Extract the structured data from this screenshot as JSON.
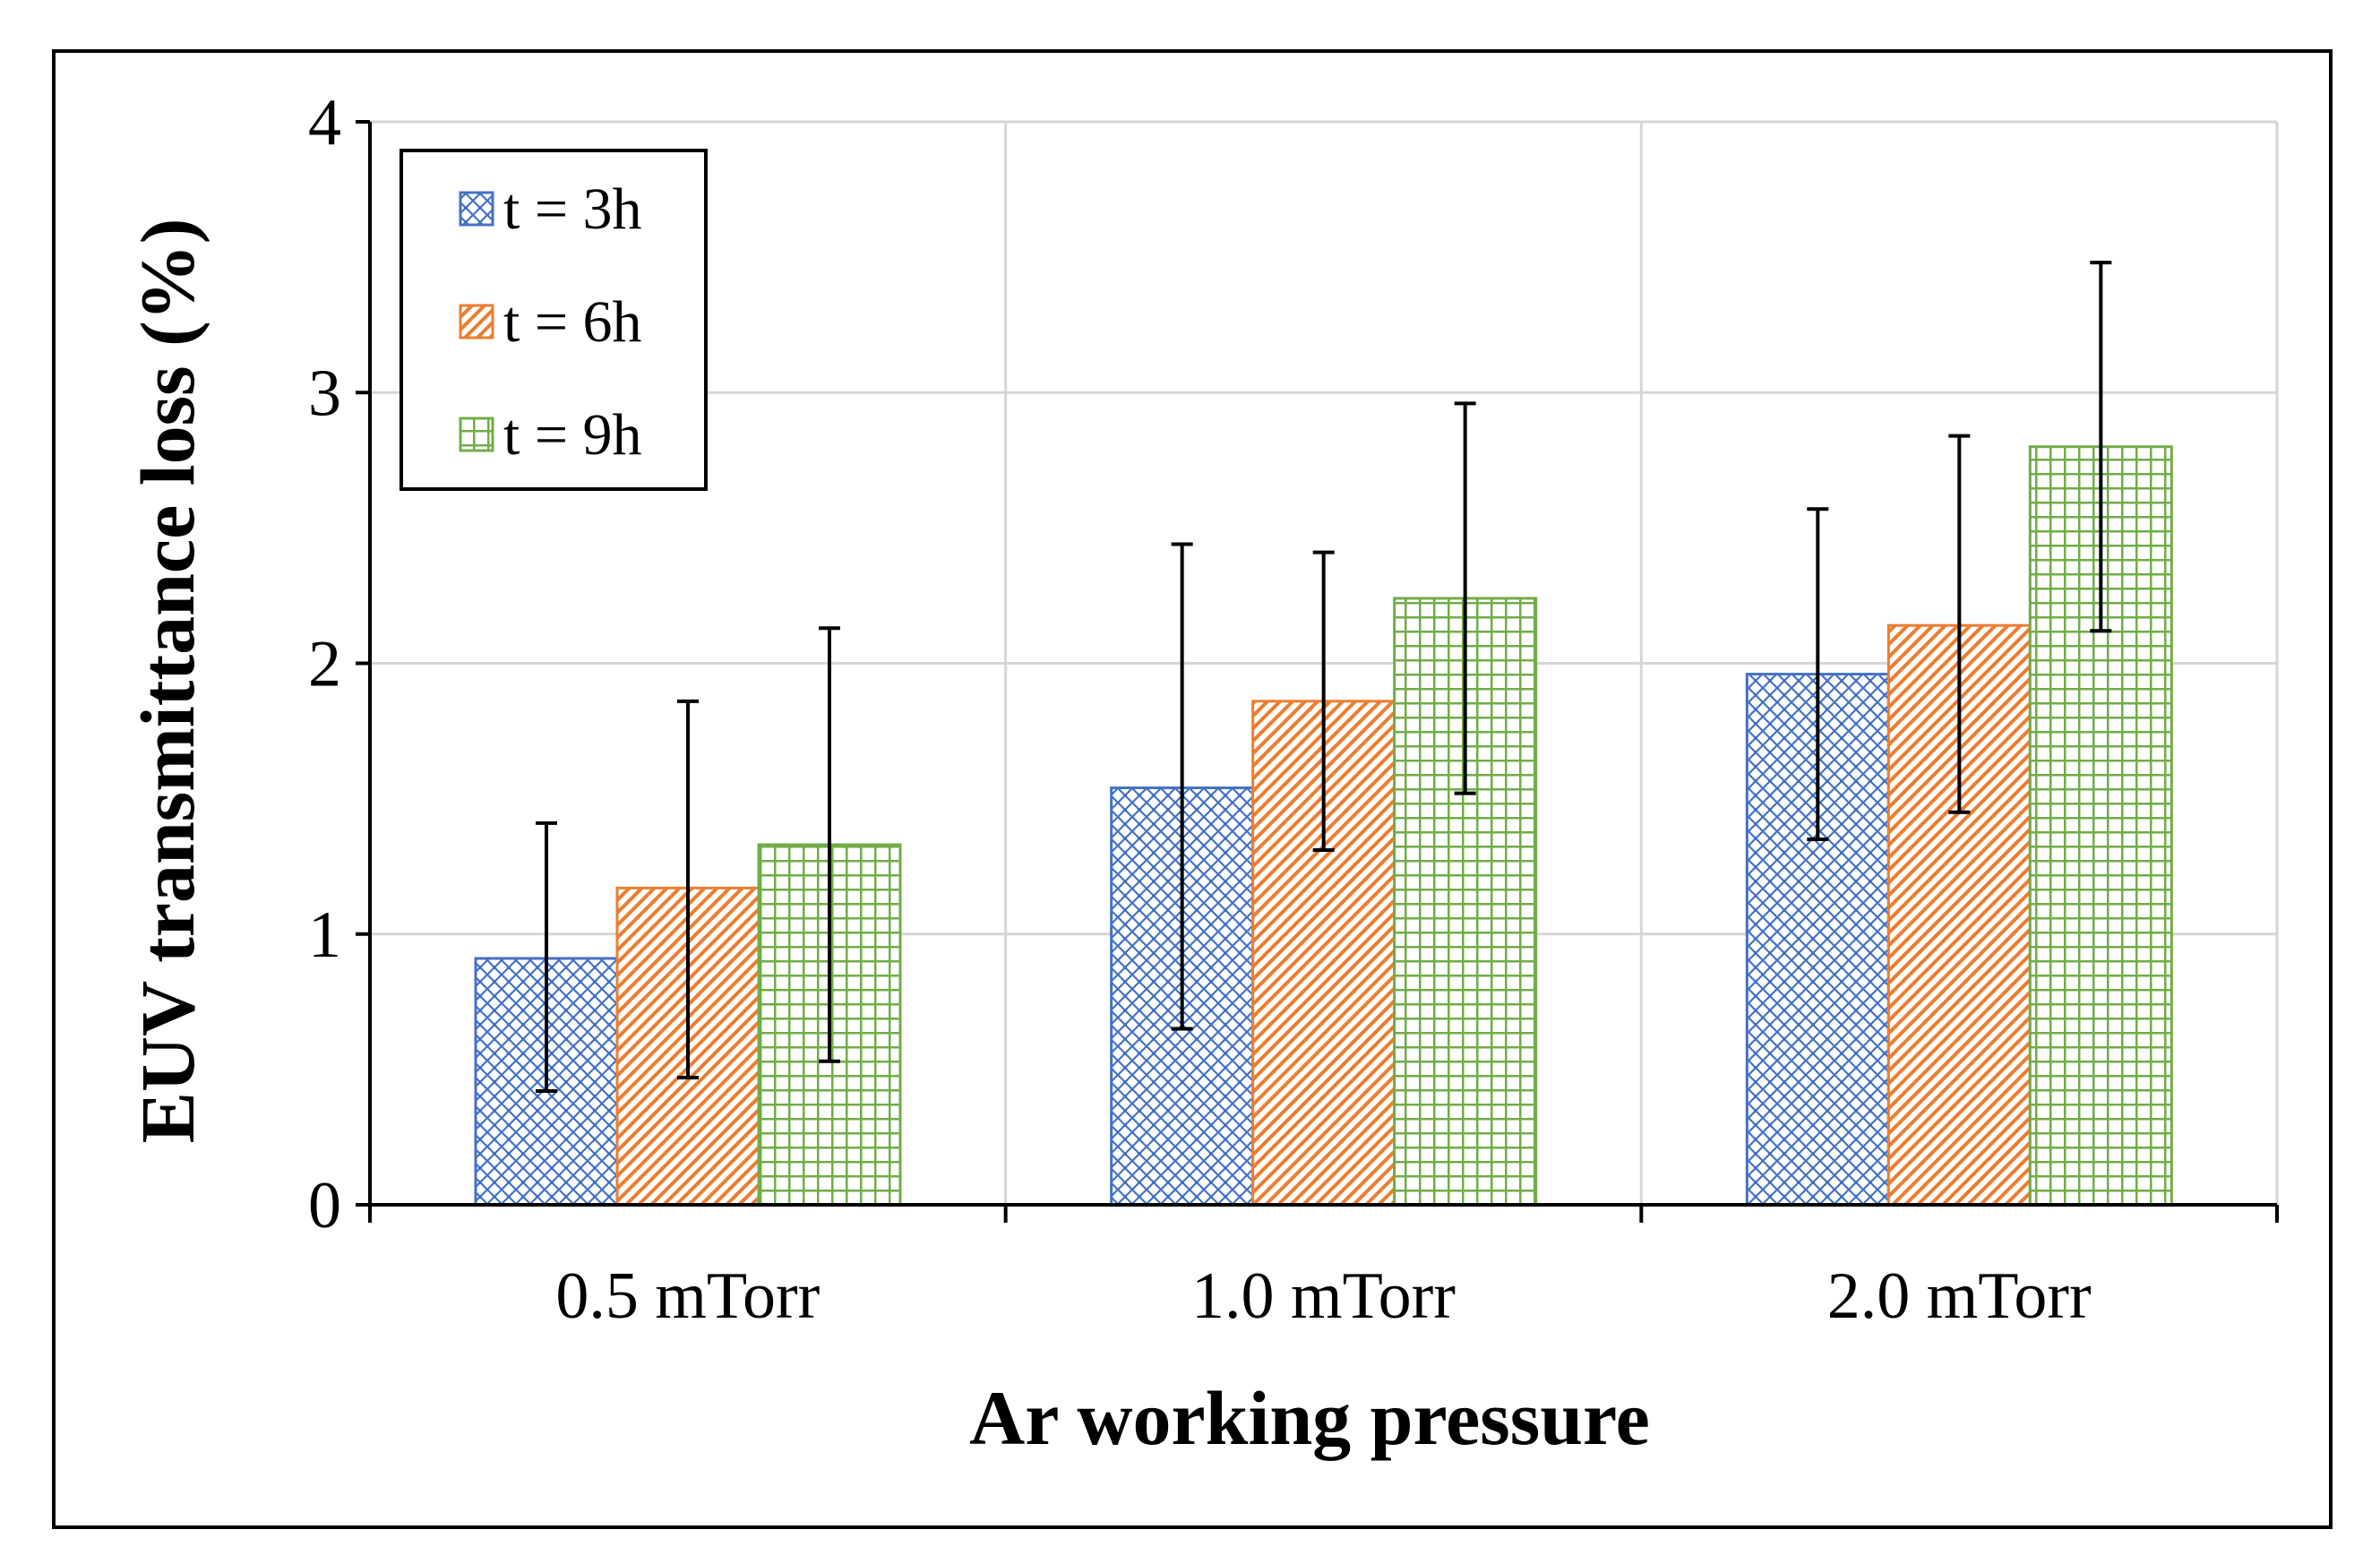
{
  "chart_data": {
    "type": "bar",
    "title": "",
    "xlabel": "Ar working pressure",
    "ylabel": "EUV transmittance loss (%)",
    "categories": [
      "0.5 mTorr",
      "1.0 mTorr",
      "2.0 mTorr"
    ],
    "ylim": [
      0,
      4
    ],
    "yticks": [
      "0",
      "1",
      "2",
      "3",
      "4"
    ],
    "grid": true,
    "legend_position": "top-left",
    "series": [
      {
        "name": "t = 3h",
        "color": "#4472c4",
        "pattern": "crosshatch-diagonal",
        "values": [
          0.91,
          1.54,
          1.96
        ],
        "error_low": [
          0.42,
          0.65,
          1.35
        ],
        "error_high": [
          1.41,
          2.44,
          2.57
        ]
      },
      {
        "name": "t = 6h",
        "color": "#ed7d31",
        "pattern": "diagonal-lines",
        "values": [
          1.17,
          1.86,
          2.14
        ],
        "error_low": [
          0.47,
          1.31,
          1.45
        ],
        "error_high": [
          1.86,
          2.41,
          2.84
        ]
      },
      {
        "name": "t = 9h",
        "color": "#70ad47",
        "pattern": "grid",
        "values": [
          1.33,
          2.24,
          2.8
        ],
        "error_low": [
          0.53,
          1.52,
          2.12
        ],
        "error_high": [
          2.13,
          2.96,
          3.48
        ]
      }
    ]
  }
}
